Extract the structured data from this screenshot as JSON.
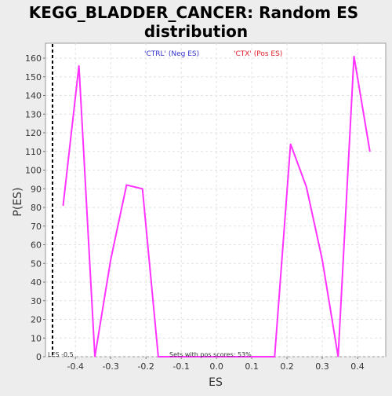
{
  "chart_data": {
    "type": "line",
    "title_lines": [
      "KEGG_BLADDER_CANCER: Random ES",
      "distribution"
    ],
    "xlabel": "ES",
    "ylabel": "P(ES)",
    "xlim": [
      -0.485,
      0.48
    ],
    "ylim": [
      0,
      168
    ],
    "x_ticks": [
      -0.4,
      -0.3,
      -0.2,
      -0.1,
      0.0,
      0.1,
      0.2,
      0.3,
      0.4
    ],
    "x_tick_labels": [
      "-0.4",
      "-0.3",
      "-0.2",
      "-0.1",
      "0.0",
      "0.1",
      "0.2",
      "0.3",
      "0.4"
    ],
    "y_ticks": [
      0,
      10,
      20,
      30,
      40,
      50,
      60,
      70,
      80,
      90,
      100,
      110,
      120,
      130,
      140,
      150,
      160
    ],
    "y_tick_labels": [
      "0",
      "10",
      "20",
      "30",
      "40",
      "50",
      "60",
      "70",
      "80",
      "90",
      "100",
      "110",
      "120",
      "130",
      "140",
      "150",
      "160"
    ],
    "grid": true,
    "series": [
      {
        "color": "#ff33ff",
        "x": [
          -0.435,
          -0.39,
          -0.345,
          -0.3,
          -0.255,
          -0.21,
          -0.165,
          -0.12,
          -0.075,
          -0.03,
          0.015,
          0.06,
          0.105,
          0.15,
          0.165,
          0.21,
          0.255,
          0.3,
          0.345,
          0.39,
          0.435
        ],
        "y": [
          81,
          156,
          0,
          52,
          92,
          90,
          0,
          0,
          0,
          0,
          0,
          0,
          0,
          0,
          0,
          114,
          91,
          52,
          0,
          161,
          110
        ]
      }
    ],
    "marker_line": {
      "x": -0.465,
      "style": "dashed",
      "color": "#000000",
      "label": "LES -0.5"
    },
    "legend": {
      "placement": "top",
      "entries": [
        {
          "text": "'CTRL' (Neg ES)",
          "color": "#3333cc"
        },
        {
          "text": "'CTX' (Pos ES)",
          "color": "#e0202a"
        }
      ]
    },
    "annotation": "Sets with pos scores: 53%"
  }
}
